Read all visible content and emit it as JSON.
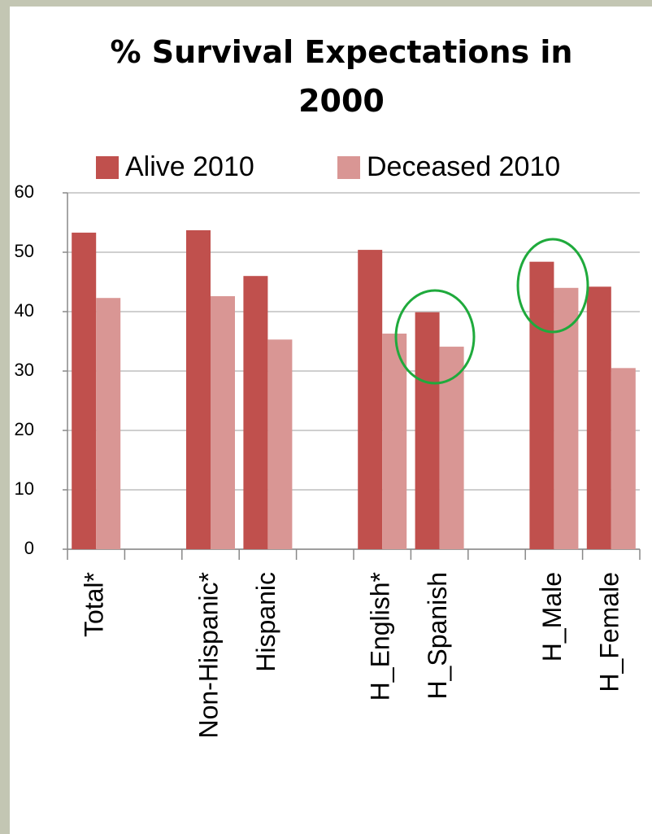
{
  "chart_data": {
    "type": "bar",
    "title": "% Survival Expectations in 2000",
    "categories": [
      "Total*",
      null,
      "Non-Hispanic*",
      "Hispanic",
      null,
      "H_English*",
      "H_Spanish",
      null,
      "H_Male",
      "H_Female"
    ],
    "series": [
      {
        "name": "Alive 2010",
        "color": "#c0504d",
        "values": [
          53.3,
          null,
          53.7,
          46,
          null,
          50.4,
          39.9,
          null,
          48.4,
          44.2
        ]
      },
      {
        "name": "Deceased 2010",
        "color": "#d99694",
        "values": [
          42.3,
          null,
          42.6,
          35.3,
          null,
          36.3,
          34.1,
          null,
          44,
          30.5
        ]
      }
    ],
    "ylim": [
      0,
      60
    ],
    "yticks": [
      0,
      10,
      20,
      30,
      40,
      50,
      60
    ],
    "grid": true,
    "legend": "top"
  }
}
